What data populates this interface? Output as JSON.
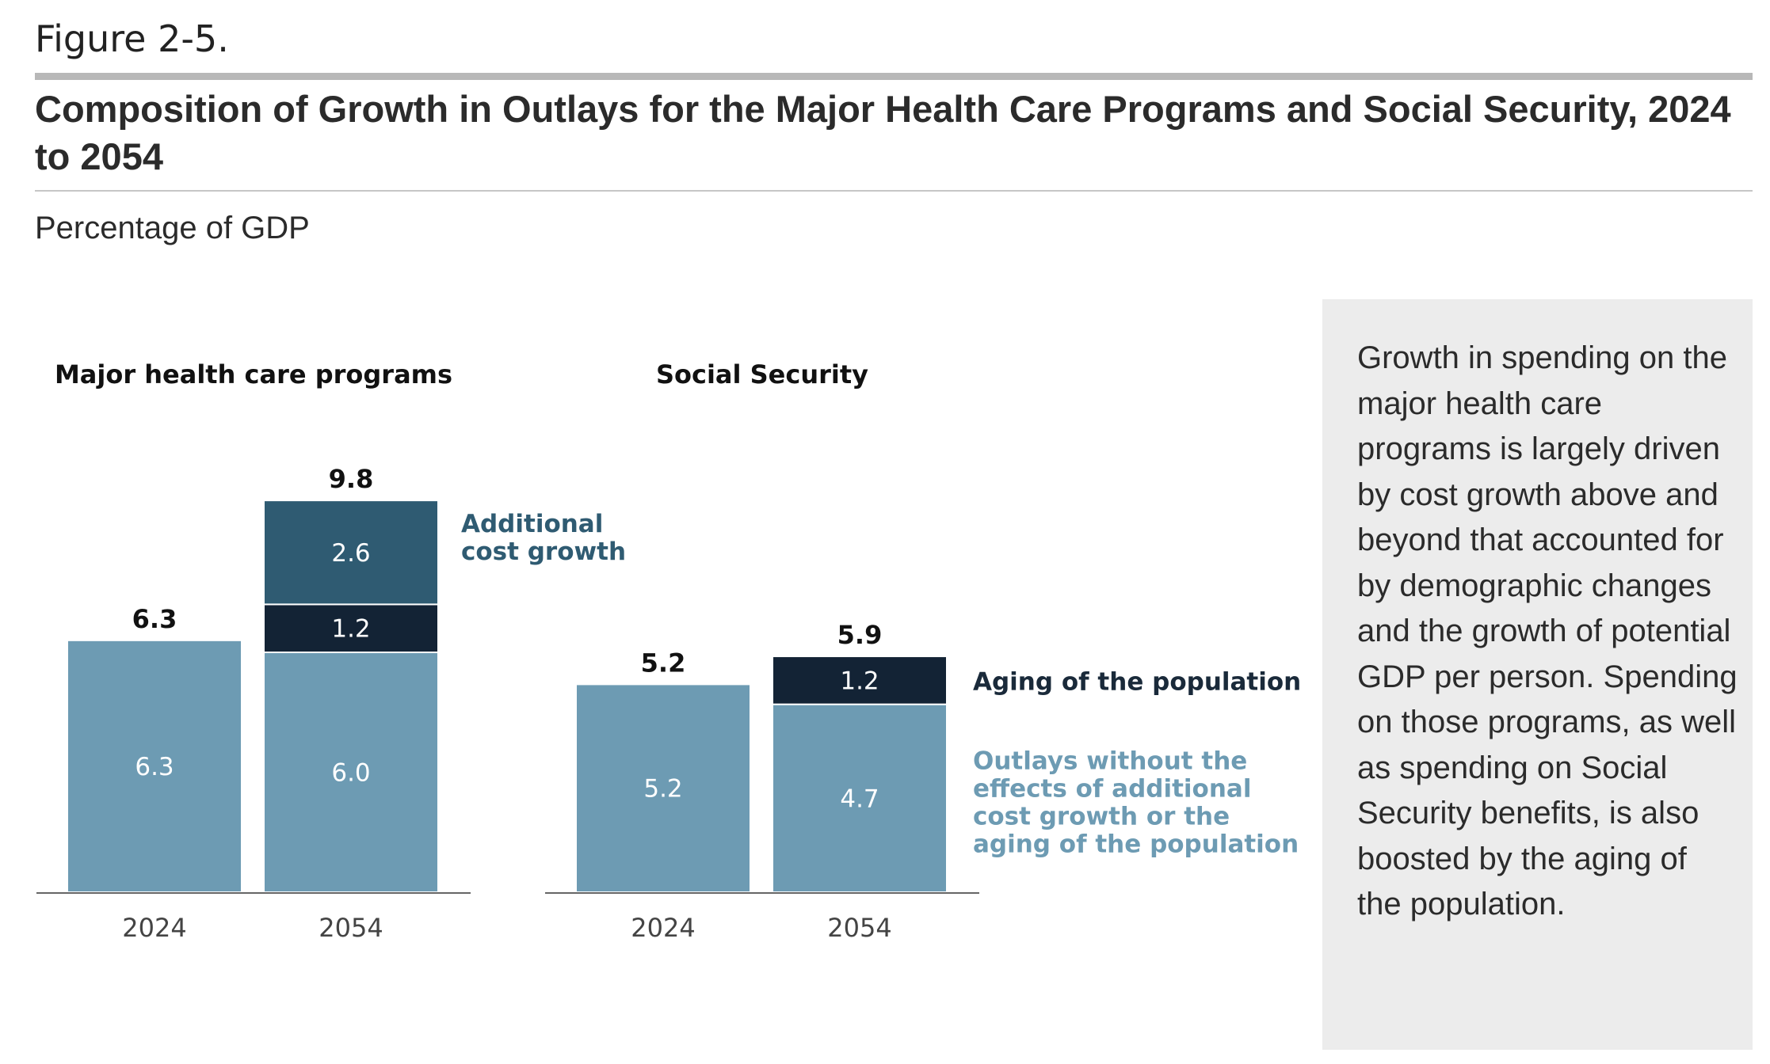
{
  "figure_label": "Figure 2-5.",
  "title": "Composition of Growth in Outlays for the Major Health Care Programs and Social Security, 2024 to 2054",
  "subtitle": "Percentage of GDP",
  "note": "Growth in spending on the major health care programs is largely driven by cost growth above and beyond that accounted for by demographic changes and the growth of potential GDP per person. Spending on those programs, as well as spending on Social Security benefits, is also boosted by the aging of the population.",
  "colors": {
    "outlays": "#6d9bb3",
    "aging": "#132335",
    "additional": "#2f5b72",
    "additional_label": "#2f5b72",
    "outlays_label": "#6d9bb3",
    "aging_label": "#1a2a3a"
  },
  "chart_data": [
    {
      "type": "bar",
      "stacked": true,
      "title": "Major health care programs",
      "categories": [
        "2024",
        "2054"
      ],
      "series": [
        {
          "name": "Outlays without the effects of additional cost growth or the aging of the population",
          "key": "outlays",
          "values": [
            6.3,
            6.0
          ]
        },
        {
          "name": "Aging of the population",
          "key": "aging",
          "values": [
            0,
            1.2
          ]
        },
        {
          "name": "Additional cost growth",
          "key": "additional",
          "values": [
            0,
            2.6
          ]
        }
      ],
      "totals": [
        6.3,
        9.8
      ],
      "ylim": [
        0,
        10
      ],
      "xlabel": "",
      "ylabel": "Percentage of GDP",
      "series_labels": [
        {
          "series": "Additional cost growth",
          "lines": [
            "Additional",
            "cost growth"
          ]
        }
      ]
    },
    {
      "type": "bar",
      "stacked": true,
      "title": "Social Security",
      "categories": [
        "2024",
        "2054"
      ],
      "series": [
        {
          "name": "Outlays without the effects of additional cost growth or the aging of the population",
          "key": "outlays",
          "values": [
            5.2,
            4.7
          ]
        },
        {
          "name": "Aging of the population",
          "key": "aging",
          "values": [
            0,
            1.2
          ]
        }
      ],
      "totals": [
        5.2,
        5.9
      ],
      "ylim": [
        0,
        10
      ],
      "xlabel": "",
      "ylabel": "Percentage of GDP",
      "series_labels": [
        {
          "series": "Aging of the population",
          "lines": [
            "Aging of the population"
          ]
        },
        {
          "series": "Outlays without the effects of additional cost growth or the aging of the population",
          "lines": [
            "Outlays without the",
            "effects of additional",
            "cost growth or the",
            "aging of the population"
          ]
        }
      ]
    }
  ]
}
